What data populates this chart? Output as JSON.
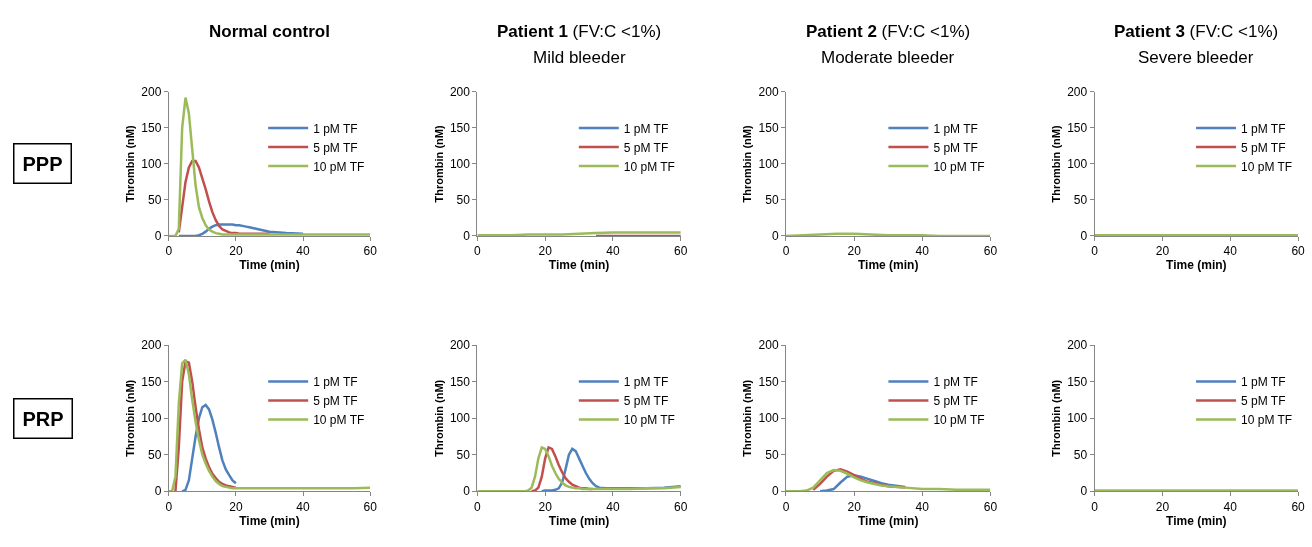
{
  "chart_data": [
    {
      "type": "line",
      "title": "Normal control",
      "annotations": [
        "PPP"
      ],
      "xlabel": "Time (min)",
      "ylabel": "Thrombin (nM)",
      "xlim": [
        0,
        60
      ],
      "xticks": [
        0,
        20,
        40,
        60
      ],
      "ylim": [
        0,
        200
      ],
      "yticks": [
        0,
        50,
        100,
        150,
        200
      ],
      "legend": "right",
      "grid": false,
      "x": [
        0,
        1,
        2,
        3,
        4,
        5,
        6,
        7,
        8,
        9,
        10,
        11,
        12,
        13,
        14,
        15,
        16,
        17,
        18,
        19,
        20,
        21,
        22,
        23,
        24,
        25,
        26,
        27,
        28,
        29,
        30,
        35,
        40,
        45,
        50,
        55,
        60
      ],
      "series": [
        {
          "name": "1 pM TF",
          "color": "#4f81bd",
          "values": [
            null,
            null,
            null,
            0,
            0,
            0,
            0,
            0,
            0,
            1,
            3,
            6,
            10,
            13,
            15,
            16,
            16,
            16,
            16,
            16,
            15,
            15,
            14,
            13,
            12,
            11,
            10,
            9,
            8,
            7,
            6,
            4,
            3,
            null,
            null,
            null,
            null
          ]
        },
        {
          "name": "5 pM TF",
          "color": "#c0504d",
          "values": [
            null,
            null,
            null,
            5,
            40,
            75,
            95,
            104,
            104,
            95,
            80,
            65,
            48,
            33,
            22,
            14,
            9,
            7,
            5,
            4,
            4,
            3,
            3,
            3,
            3,
            3,
            3,
            3,
            3,
            3,
            3,
            null,
            null,
            null,
            null,
            null,
            null
          ]
        },
        {
          "name": "10 pM TF",
          "color": "#9bbb59",
          "values": [
            0,
            0,
            0,
            10,
            150,
            192,
            170,
            120,
            70,
            40,
            25,
            15,
            9,
            6,
            4,
            3,
            2,
            2,
            2,
            2,
            2,
            2,
            2,
            2,
            2,
            2,
            2,
            2,
            2,
            2,
            2,
            2,
            2,
            2,
            2,
            2,
            2
          ]
        }
      ]
    },
    {
      "type": "line",
      "title": "Patient 1 (FV:C <1%)",
      "subtitle": "Mild bleeder",
      "xlabel": "Time (min)",
      "ylabel": "Thrombin (nM)",
      "xlim": [
        0,
        60
      ],
      "xticks": [
        0,
        20,
        40,
        60
      ],
      "ylim": [
        0,
        200
      ],
      "yticks": [
        0,
        50,
        100,
        150,
        200
      ],
      "legend": "right",
      "grid": false,
      "x": [
        0,
        5,
        10,
        15,
        20,
        25,
        30,
        35,
        40,
        45,
        50,
        55,
        60
      ],
      "series": [
        {
          "name": "1 pM TF",
          "color": "#4f81bd",
          "values": [
            null,
            null,
            null,
            null,
            null,
            null,
            null,
            null,
            null,
            null,
            null,
            null,
            null
          ]
        },
        {
          "name": "5 pM TF",
          "color": "#c0504d",
          "values": [
            null,
            null,
            null,
            null,
            null,
            null,
            null,
            0,
            0,
            0,
            0,
            0,
            0
          ]
        },
        {
          "name": "10 pM TF",
          "color": "#9bbb59",
          "values": [
            1,
            1,
            1,
            2,
            2,
            2,
            3,
            4,
            5,
            5,
            5,
            5,
            5
          ]
        }
      ]
    },
    {
      "type": "line",
      "title": "Patient 2 (FV:C <1%)",
      "subtitle": "Moderate bleeder",
      "xlabel": "Time (min)",
      "ylabel": "Thrombin (nM)",
      "xlim": [
        0,
        60
      ],
      "xticks": [
        0,
        20,
        40,
        60
      ],
      "ylim": [
        0,
        200
      ],
      "yticks": [
        0,
        50,
        100,
        150,
        200
      ],
      "legend": "right",
      "grid": false,
      "x": [
        0,
        5,
        10,
        15,
        20,
        25,
        30,
        35,
        40,
        45,
        50,
        55,
        60
      ],
      "series": [
        {
          "name": "1 pM TF",
          "color": "#4f81bd",
          "values": [
            null,
            null,
            null,
            null,
            null,
            null,
            null,
            null,
            null,
            null,
            null,
            null,
            null
          ]
        },
        {
          "name": "5 pM TF",
          "color": "#c0504d",
          "values": [
            null,
            null,
            null,
            null,
            null,
            null,
            null,
            null,
            null,
            null,
            null,
            null,
            null
          ]
        },
        {
          "name": "10 pM TF",
          "color": "#9bbb59",
          "values": [
            0,
            1,
            2,
            3,
            3,
            2,
            1,
            1,
            1,
            0,
            0,
            0,
            0
          ]
        }
      ]
    },
    {
      "type": "line",
      "title": "Patient 3 (FV:C <1%)",
      "subtitle": "Severe bleeder",
      "xlabel": "Time (min)",
      "ylabel": "Thrombin (nM)",
      "xlim": [
        0,
        60
      ],
      "xticks": [
        0,
        20,
        40,
        60
      ],
      "ylim": [
        0,
        200
      ],
      "yticks": [
        0,
        50,
        100,
        150,
        200
      ],
      "legend": "right",
      "grid": false,
      "x": [
        0,
        5,
        10,
        15,
        20,
        25,
        30,
        35,
        40,
        45,
        50,
        55,
        60
      ],
      "series": [
        {
          "name": "1 pM TF",
          "color": "#4f81bd",
          "values": [
            null,
            null,
            null,
            null,
            null,
            null,
            null,
            null,
            null,
            null,
            null,
            null,
            null
          ]
        },
        {
          "name": "5 pM TF",
          "color": "#c0504d",
          "values": [
            null,
            null,
            null,
            null,
            null,
            null,
            null,
            null,
            null,
            null,
            null,
            null,
            null
          ]
        },
        {
          "name": "10 pM TF",
          "color": "#9bbb59",
          "values": [
            1,
            1,
            1,
            1,
            1,
            1,
            1,
            1,
            1,
            1,
            1,
            1,
            1
          ]
        }
      ]
    },
    {
      "type": "line",
      "annotations": [
        "PRP"
      ],
      "xlabel": "Time (min)",
      "ylabel": "Thrombin (nM)",
      "xlim": [
        0,
        60
      ],
      "xticks": [
        0,
        20,
        40,
        60
      ],
      "ylim": [
        0,
        200
      ],
      "yticks": [
        0,
        50,
        100,
        150,
        200
      ],
      "legend": "right",
      "grid": false,
      "x": [
        0,
        1,
        2,
        3,
        4,
        5,
        6,
        7,
        8,
        9,
        10,
        11,
        12,
        13,
        14,
        15,
        16,
        17,
        18,
        19,
        20,
        21,
        22,
        23,
        24,
        25,
        26,
        27,
        28,
        29,
        30,
        35,
        40,
        45,
        50,
        55,
        60
      ],
      "series": [
        {
          "name": "1 pM TF",
          "color": "#4f81bd",
          "values": [
            null,
            null,
            null,
            null,
            0,
            2,
            15,
            45,
            75,
            100,
            115,
            118,
            112,
            98,
            80,
            60,
            42,
            30,
            22,
            15,
            11,
            null,
            null,
            null,
            null,
            null,
            null,
            null,
            null,
            null,
            null,
            null,
            null,
            null,
            null,
            null,
            null
          ]
        },
        {
          "name": "5 pM TF",
          "color": "#c0504d",
          "values": [
            null,
            null,
            0,
            60,
            150,
            178,
            176,
            150,
            115,
            85,
            60,
            45,
            33,
            24,
            18,
            13,
            10,
            8,
            7,
            6,
            5,
            null,
            null,
            null,
            null,
            null,
            null,
            null,
            null,
            null,
            null,
            null,
            null,
            null,
            null,
            null,
            null
          ]
        },
        {
          "name": "10 pM TF",
          "color": "#9bbb59",
          "values": [
            0,
            0,
            20,
            120,
            175,
            180,
            160,
            125,
            95,
            70,
            50,
            38,
            28,
            20,
            14,
            10,
            7,
            6,
            5,
            4,
            4,
            4,
            4,
            4,
            4,
            4,
            4,
            4,
            4,
            4,
            4,
            4,
            4,
            4,
            4,
            4,
            5
          ]
        }
      ]
    },
    {
      "type": "line",
      "xlabel": "Time (min)",
      "ylabel": "Thrombin (nM)",
      "xlim": [
        0,
        60
      ],
      "xticks": [
        0,
        20,
        40,
        60
      ],
      "ylim": [
        0,
        200
      ],
      "yticks": [
        0,
        50,
        100,
        150,
        200
      ],
      "legend": "right",
      "grid": false,
      "x": [
        0,
        5,
        10,
        14,
        15,
        16,
        17,
        18,
        19,
        20,
        21,
        22,
        23,
        24,
        25,
        26,
        27,
        28,
        29,
        30,
        31,
        32,
        33,
        34,
        35,
        36,
        38,
        40,
        45,
        50,
        55,
        60
      ],
      "series": [
        {
          "name": "1 pM TF",
          "color": "#4f81bd",
          "values": [
            null,
            null,
            null,
            null,
            null,
            null,
            null,
            null,
            0,
            1,
            1,
            1,
            2,
            4,
            12,
            30,
            50,
            58,
            55,
            45,
            35,
            25,
            17,
            11,
            7,
            5,
            4,
            4,
            4,
            4,
            5,
            7
          ]
        },
        {
          "name": "5 pM TF",
          "color": "#c0504d",
          "values": [
            null,
            null,
            null,
            null,
            null,
            0,
            1,
            5,
            20,
            45,
            60,
            58,
            48,
            36,
            26,
            18,
            13,
            9,
            7,
            5,
            4,
            4,
            3,
            3,
            null,
            null,
            null,
            null,
            null,
            null,
            null,
            null
          ]
        },
        {
          "name": "10 pM TF",
          "color": "#9bbb59",
          "values": [
            0,
            0,
            0,
            0,
            1,
            5,
            20,
            45,
            60,
            58,
            48,
            35,
            25,
            17,
            12,
            8,
            6,
            5,
            4,
            4,
            3,
            3,
            3,
            3,
            3,
            3,
            3,
            3,
            3,
            4,
            4,
            6
          ]
        }
      ]
    },
    {
      "type": "line",
      "xlabel": "Time (min)",
      "ylabel": "Thrombin (nM)",
      "xlim": [
        0,
        60
      ],
      "xticks": [
        0,
        20,
        40,
        60
      ],
      "ylim": [
        0,
        200
      ],
      "yticks": [
        0,
        50,
        100,
        150,
        200
      ],
      "legend": "right",
      "grid": false,
      "x": [
        0,
        2,
        4,
        6,
        8,
        10,
        12,
        14,
        16,
        18,
        20,
        22,
        24,
        26,
        28,
        30,
        35,
        40,
        45,
        50,
        55,
        60
      ],
      "series": [
        {
          "name": "1 pM TF",
          "color": "#4f81bd",
          "values": [
            null,
            null,
            null,
            null,
            null,
            0,
            1,
            3,
            12,
            20,
            22,
            20,
            17,
            14,
            11,
            9,
            6,
            null,
            null,
            null,
            null,
            null
          ]
        },
        {
          "name": "5 pM TF",
          "color": "#c0504d",
          "values": [
            null,
            null,
            null,
            null,
            2,
            10,
            20,
            28,
            30,
            27,
            22,
            17,
            13,
            11,
            9,
            7,
            5,
            null,
            null,
            null,
            null,
            null
          ]
        },
        {
          "name": "10 pM TF",
          "color": "#9bbb59",
          "values": [
            0,
            0,
            0,
            1,
            5,
            15,
            25,
            29,
            28,
            24,
            19,
            15,
            12,
            10,
            8,
            7,
            5,
            3,
            3,
            2,
            2,
            2
          ]
        }
      ]
    },
    {
      "type": "line",
      "xlabel": "Time (min)",
      "ylabel": "Thrombin (nM)",
      "xlim": [
        0,
        60
      ],
      "xticks": [
        0,
        20,
        40,
        60
      ],
      "ylim": [
        0,
        200
      ],
      "yticks": [
        0,
        50,
        100,
        150,
        200
      ],
      "legend": "right",
      "grid": false,
      "x": [
        0,
        5,
        10,
        15,
        20,
        25,
        30,
        35,
        40,
        45,
        50,
        55,
        60
      ],
      "series": [
        {
          "name": "1 pM TF",
          "color": "#4f81bd",
          "values": [
            null,
            null,
            null,
            null,
            null,
            null,
            null,
            null,
            null,
            null,
            null,
            null,
            null
          ]
        },
        {
          "name": "5 pM TF",
          "color": "#c0504d",
          "values": [
            null,
            null,
            null,
            null,
            null,
            null,
            null,
            null,
            null,
            null,
            null,
            null,
            null
          ]
        },
        {
          "name": "10 pM TF",
          "color": "#9bbb59",
          "values": [
            1,
            1,
            1,
            1,
            1,
            1,
            1,
            1,
            1,
            1,
            1,
            1,
            1
          ]
        }
      ]
    }
  ]
}
